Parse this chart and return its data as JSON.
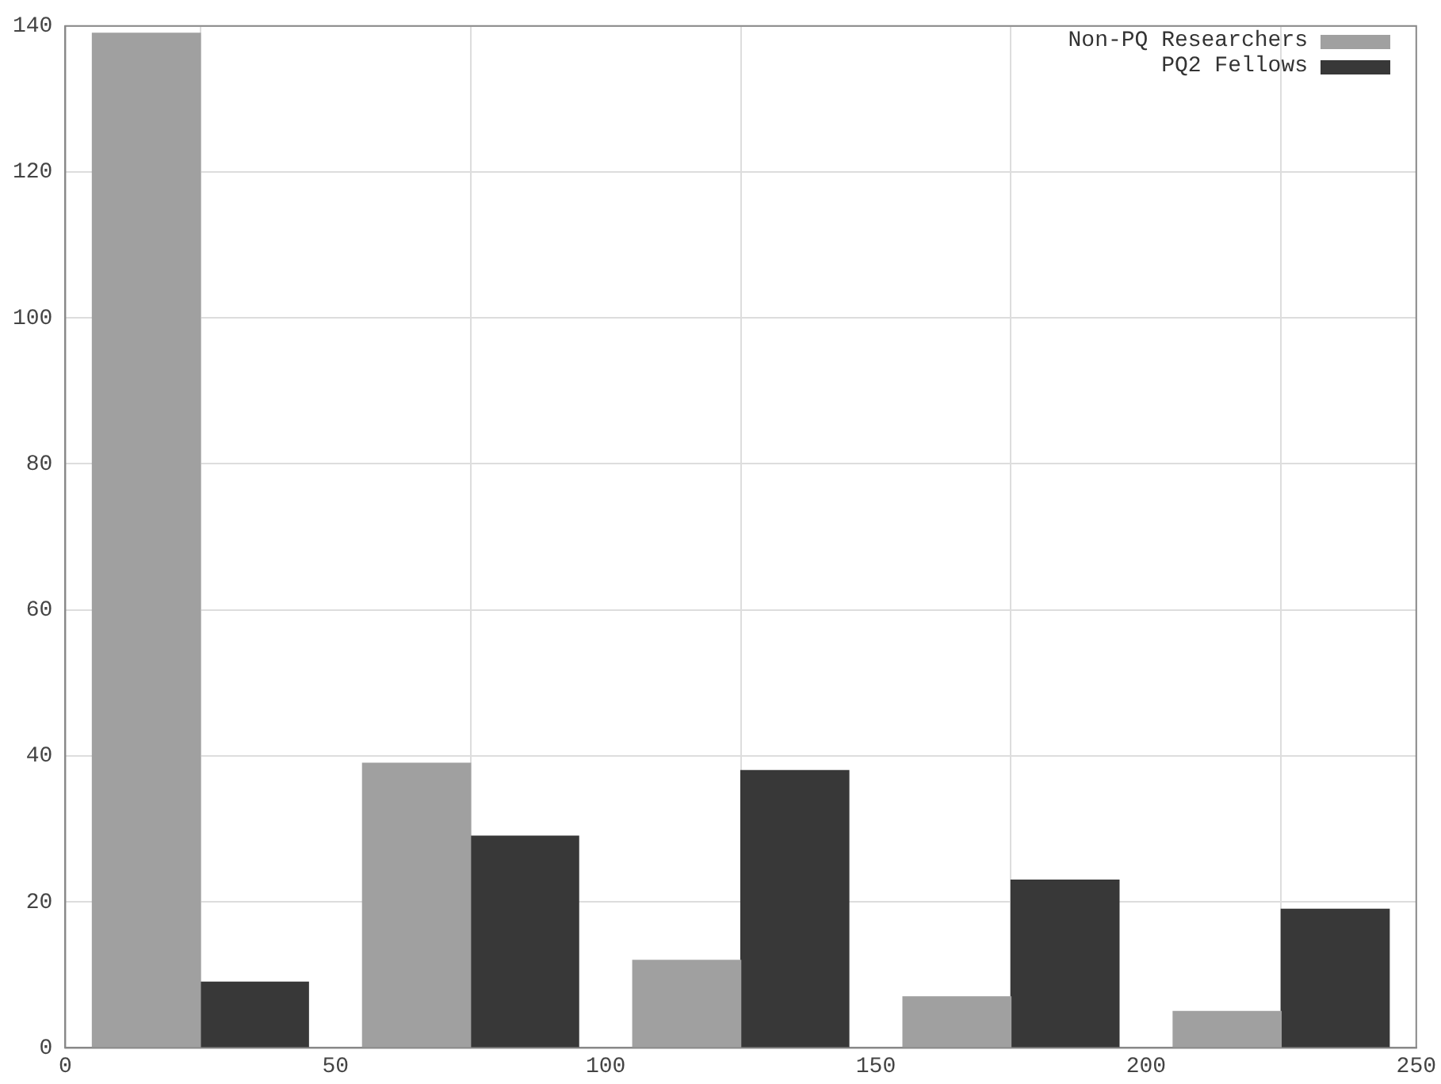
{
  "chart_data": {
    "type": "bar",
    "xlim": [
      0,
      250
    ],
    "xticks": [
      0,
      50,
      100,
      150,
      200,
      250
    ],
    "ylim": [
      0,
      140
    ],
    "yticks": [
      0,
      20,
      40,
      60,
      80,
      100,
      120,
      140
    ],
    "grid": true,
    "legend": "top right",
    "series": [
      {
        "name": "Non-PQ Researchers",
        "color": "#a0a0a0",
        "x": [
          15,
          65,
          115,
          165,
          215
        ],
        "values": [
          139,
          39,
          12,
          7,
          5
        ]
      },
      {
        "name": "PQ2 Fellows",
        "color": "#383838",
        "x": [
          35,
          85,
          135,
          185,
          235
        ],
        "values": [
          9,
          29,
          38,
          23,
          19
        ]
      }
    ]
  }
}
